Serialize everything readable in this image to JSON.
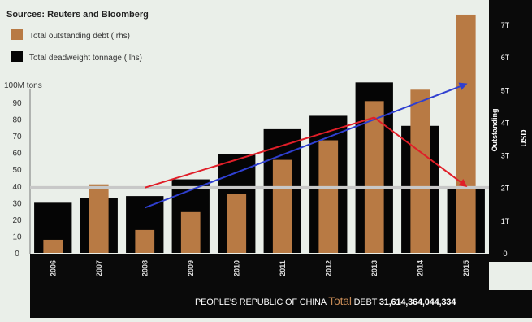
{
  "chart_data": {
    "type": "bar",
    "title": "",
    "source": "Sources: Reuters and Bloomberg",
    "categories": [
      "2006",
      "2007",
      "2008",
      "2009",
      "2010",
      "2011",
      "2012",
      "2013",
      "2014",
      "2015"
    ],
    "series": [
      {
        "name": "Total outstanding debt ( rhs)",
        "axis": "right",
        "color": "#b87a44",
        "values": [
          0.4,
          2.1,
          0.7,
          1.25,
          1.8,
          2.85,
          3.45,
          4.65,
          5.0,
          7.3
        ]
      },
      {
        "name": "Total deadweight tonnage ( lhs)",
        "axis": "left",
        "color": "#050505",
        "values": [
          30,
          33,
          34,
          44,
          59,
          74,
          82,
          102,
          76,
          38
        ]
      }
    ],
    "left_axis": {
      "label": "100M tons",
      "ylim": [
        0,
        100
      ],
      "ticks": [
        "0",
        "10",
        "20",
        "30",
        "40",
        "50",
        "60",
        "70",
        "80",
        "90"
      ]
    },
    "right_axis": {
      "label": "USD",
      "label2": "Outstanding",
      "ylim": [
        0,
        7.8
      ],
      "ticks": [
        "0",
        "1T",
        "2T",
        "3T",
        "4T",
        "5T",
        "6T",
        "7T"
      ]
    },
    "reference_line": {
      "value": 39,
      "color": "#c8c8c8"
    },
    "annotations": [
      {
        "type": "arrow",
        "color": "#2f3fd0",
        "from": {
          "x": "2008",
          "y": 27
        },
        "to": {
          "x": "2015",
          "y": 101
        }
      },
      {
        "type": "line",
        "color": "#e01e28",
        "from": {
          "x": "2008",
          "y": 39
        },
        "to": {
          "x": "2013",
          "y": 81
        }
      },
      {
        "type": "arrow",
        "color": "#e01e28",
        "from": {
          "x": "2013",
          "y": 81
        },
        "to": {
          "x": "2015",
          "y": 40
        }
      }
    ],
    "grid": false,
    "legend_position": "top-left"
  },
  "footer": {
    "prefix": "PEOPLE'S REPUBLIC OF CHINA",
    "highlight": "Total",
    "label": "DEBT",
    "amount": "31,614,364,044,334"
  }
}
